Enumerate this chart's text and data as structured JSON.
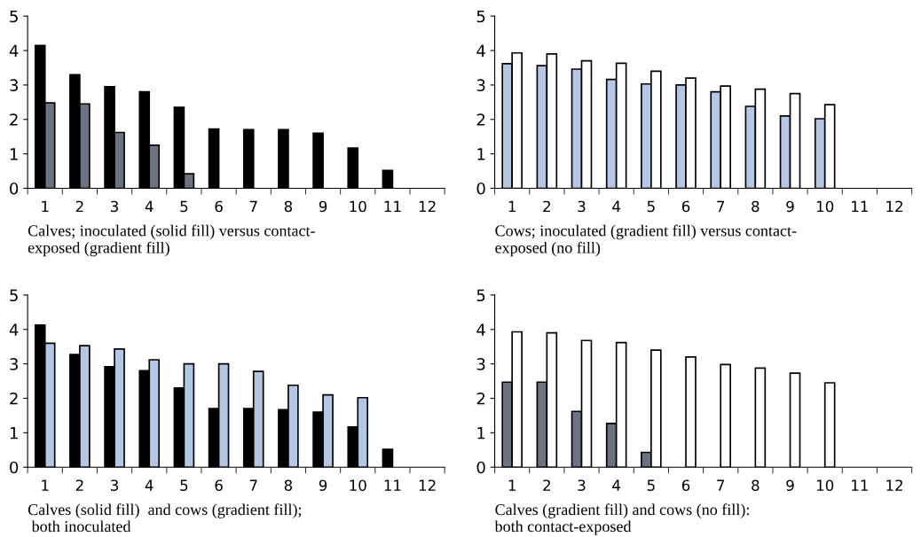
{
  "chart_data": [
    {
      "type": "bar",
      "xlabel": "Calves; inoculated (solid fill) versus contact-\nexposed (gradient fill)",
      "categories": [
        "1",
        "2",
        "3",
        "4",
        "5",
        "6",
        "7",
        "8",
        "9",
        "10",
        "11",
        "12"
      ],
      "ylim": [
        0,
        5
      ],
      "yticks": [
        0,
        1,
        2,
        3,
        4,
        5
      ],
      "series": [
        {
          "color": "#000000",
          "values": [
            4.15,
            3.3,
            2.95,
            2.8,
            2.35,
            1.72,
            1.7,
            1.7,
            1.6,
            1.17,
            0.52,
            null
          ]
        },
        {
          "color": "#6b7282",
          "values": [
            2.48,
            2.45,
            1.62,
            1.25,
            0.42,
            null,
            null,
            null,
            null,
            null,
            null,
            null
          ]
        }
      ]
    },
    {
      "type": "bar",
      "xlabel": "Cows; inoculated (gradient fill) versus contact-\nexposed (no fill)",
      "categories": [
        "1",
        "2",
        "3",
        "4",
        "5",
        "6",
        "7",
        "8",
        "9",
        "10",
        "11",
        "12"
      ],
      "ylim": [
        0,
        5
      ],
      "yticks": [
        0,
        1,
        2,
        3,
        4,
        5
      ],
      "series": [
        {
          "color": "#b4c6e4",
          "values": [
            3.62,
            3.56,
            3.46,
            3.16,
            3.03,
            3.0,
            2.8,
            2.38,
            2.1,
            2.02,
            null,
            null
          ]
        },
        {
          "color": "#ffffff",
          "values": [
            3.93,
            3.9,
            3.7,
            3.63,
            3.4,
            3.2,
            2.97,
            2.88,
            2.75,
            2.43,
            null,
            null
          ]
        }
      ]
    },
    {
      "type": "bar",
      "xlabel": "Calves (solid fill)  and cows (gradient fill);\n both inoculated",
      "categories": [
        "1",
        "2",
        "3",
        "4",
        "5",
        "6",
        "7",
        "8",
        "9",
        "10",
        "11",
        "12"
      ],
      "ylim": [
        0,
        5
      ],
      "yticks": [
        0,
        1,
        2,
        3,
        4,
        5
      ],
      "series": [
        {
          "color": "#000000",
          "values": [
            4.13,
            3.27,
            2.92,
            2.8,
            2.3,
            1.7,
            1.7,
            1.67,
            1.6,
            1.17,
            0.52,
            null
          ]
        },
        {
          "color": "#b4c6e4",
          "values": [
            3.6,
            3.53,
            3.43,
            3.12,
            3.0,
            3.0,
            2.78,
            2.38,
            2.1,
            2.02,
            null,
            null
          ]
        }
      ]
    },
    {
      "type": "bar",
      "xlabel": "Calves (gradient fill) and cows (no fill):\nboth contact-exposed",
      "categories": [
        "1",
        "2",
        "3",
        "4",
        "5",
        "6",
        "7",
        "8",
        "9",
        "10",
        "11",
        "12"
      ],
      "ylim": [
        0,
        5
      ],
      "yticks": [
        0,
        1,
        2,
        3,
        4,
        5
      ],
      "series": [
        {
          "color": "#6b7282",
          "values": [
            2.47,
            2.47,
            1.62,
            1.27,
            0.43,
            null,
            null,
            null,
            null,
            null,
            null,
            null
          ]
        },
        {
          "color": "#ffffff",
          "values": [
            3.93,
            3.9,
            3.68,
            3.62,
            3.4,
            3.2,
            2.98,
            2.88,
            2.73,
            2.45,
            null,
            null
          ]
        }
      ]
    }
  ]
}
